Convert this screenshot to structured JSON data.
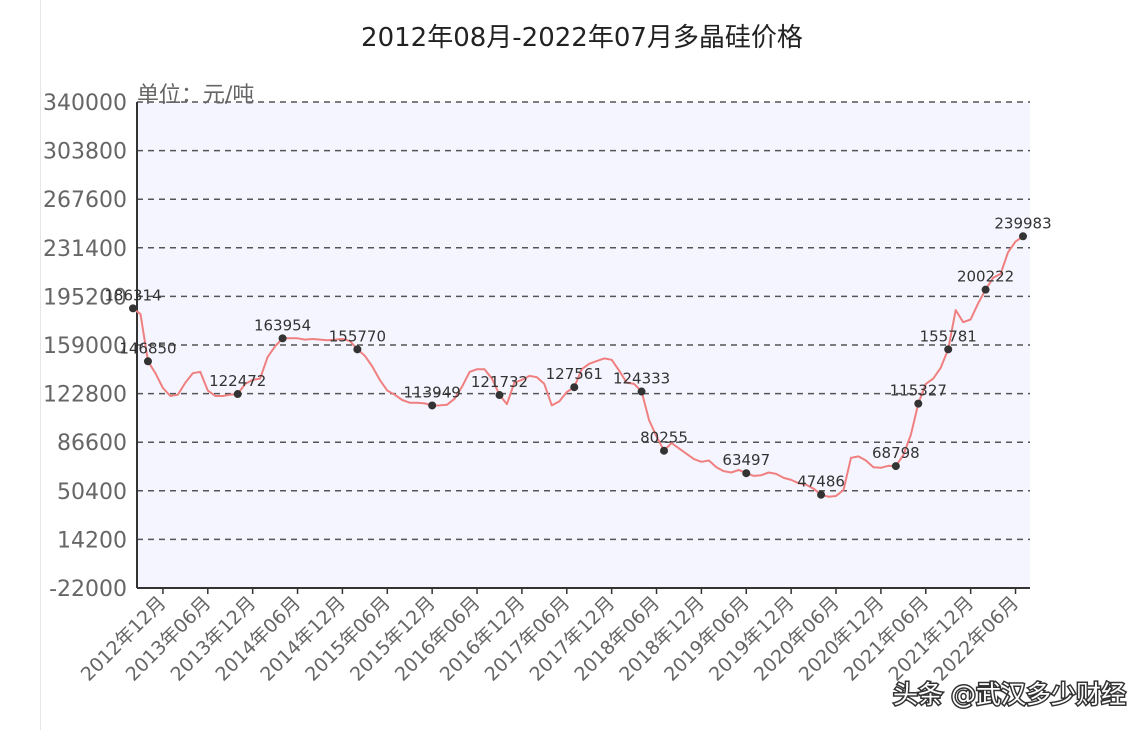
{
  "chart_data": {
    "type": "line",
    "title": "2012年08月-2022年07月多晶硅价格",
    "unit_label": "单位：元/吨",
    "y_ticks": [
      "340000",
      "303800",
      "267600",
      "231400",
      "195200",
      "159000",
      "122800",
      "86600",
      "50400",
      "14200",
      "-22000"
    ],
    "x_ticks": [
      "2012年12月",
      "2013年06月",
      "2013年12月",
      "2014年06月",
      "2014年12月",
      "2015年06月",
      "2015年12月",
      "2016年06月",
      "2016年12月",
      "2017年06月",
      "2017年12月",
      "2018年06月",
      "2018年12月",
      "2019年06月",
      "2019年12月",
      "2020年06月",
      "2020年12月",
      "2021年06月",
      "2021年12月",
      "2022年06月"
    ],
    "ylim": [
      -22000,
      340000
    ],
    "xlim": [
      "2012-08",
      "2022-07"
    ],
    "grid": "horizontal dashed",
    "line_color": "#f08080",
    "marker_color": "#333333",
    "plot_background": "#f5f5ff",
    "series": [
      {
        "values": [
          [
            "2012-08",
            186314
          ],
          [
            "2012-09",
            182000
          ],
          [
            "2012-10",
            146850
          ],
          [
            "2012-11",
            138000
          ],
          [
            "2012-12",
            127000
          ],
          [
            "2013-01",
            121000
          ],
          [
            "2013-02",
            122000
          ],
          [
            "2013-03",
            131000
          ],
          [
            "2013-04",
            138000
          ],
          [
            "2013-05",
            139000
          ],
          [
            "2013-06",
            125000
          ],
          [
            "2013-07",
            121000
          ],
          [
            "2013-08",
            121000
          ],
          [
            "2013-09",
            122000
          ],
          [
            "2013-10",
            122472
          ],
          [
            "2013-11",
            130000
          ],
          [
            "2013-12",
            133000
          ],
          [
            "2014-01",
            134000
          ],
          [
            "2014-02",
            150000
          ],
          [
            "2014-03",
            158000
          ],
          [
            "2014-04",
            163954
          ],
          [
            "2014-05",
            164000
          ],
          [
            "2014-06",
            164000
          ],
          [
            "2014-07",
            163000
          ],
          [
            "2014-08",
            163500
          ],
          [
            "2014-09",
            163000
          ],
          [
            "2014-10",
            162500
          ],
          [
            "2014-11",
            163000
          ],
          [
            "2014-12",
            163500
          ],
          [
            "2015-01",
            162000
          ],
          [
            "2015-02",
            155770
          ],
          [
            "2015-03",
            151000
          ],
          [
            "2015-04",
            143000
          ],
          [
            "2015-05",
            133000
          ],
          [
            "2015-06",
            125000
          ],
          [
            "2015-07",
            122000
          ],
          [
            "2015-08",
            118000
          ],
          [
            "2015-09",
            116000
          ],
          [
            "2015-10",
            116000
          ],
          [
            "2015-11",
            115500
          ],
          [
            "2015-12",
            113949
          ],
          [
            "2016-01",
            114000
          ],
          [
            "2016-02",
            114500
          ],
          [
            "2016-03",
            119000
          ],
          [
            "2016-04",
            128000
          ],
          [
            "2016-05",
            139000
          ],
          [
            "2016-06",
            141000
          ],
          [
            "2016-07",
            141000
          ],
          [
            "2016-08",
            134000
          ],
          [
            "2016-09",
            121732
          ],
          [
            "2016-10",
            115000
          ],
          [
            "2016-11",
            131000
          ],
          [
            "2016-12",
            133000
          ],
          [
            "2017-01",
            136000
          ],
          [
            "2017-02",
            135000
          ],
          [
            "2017-03",
            130000
          ],
          [
            "2017-04",
            114000
          ],
          [
            "2017-05",
            117000
          ],
          [
            "2017-06",
            124000
          ],
          [
            "2017-07",
            127561
          ],
          [
            "2017-08",
            141000
          ],
          [
            "2017-09",
            145000
          ],
          [
            "2017-10",
            147000
          ],
          [
            "2017-11",
            149000
          ],
          [
            "2017-12",
            148000
          ],
          [
            "2018-01",
            140000
          ],
          [
            "2018-02",
            131000
          ],
          [
            "2018-03",
            130000
          ],
          [
            "2018-04",
            124333
          ],
          [
            "2018-05",
            103000
          ],
          [
            "2018-06",
            91000
          ],
          [
            "2018-07",
            80255
          ],
          [
            "2018-08",
            86000
          ],
          [
            "2018-09",
            82000
          ],
          [
            "2018-10",
            78000
          ],
          [
            "2018-11",
            74000
          ],
          [
            "2018-12",
            72000
          ],
          [
            "2019-01",
            73000
          ],
          [
            "2019-02",
            68000
          ],
          [
            "2019-03",
            65000
          ],
          [
            "2019-04",
            64000
          ],
          [
            "2019-05",
            66000
          ],
          [
            "2019-06",
            63497
          ],
          [
            "2019-07",
            61500
          ],
          [
            "2019-08",
            62000
          ],
          [
            "2019-09",
            64000
          ],
          [
            "2019-10",
            63000
          ],
          [
            "2019-11",
            60000
          ],
          [
            "2019-12",
            58500
          ],
          [
            "2020-01",
            56000
          ],
          [
            "2020-02",
            55000
          ],
          [
            "2020-03",
            52000
          ],
          [
            "2020-04",
            47486
          ],
          [
            "2020-05",
            46000
          ],
          [
            "2020-06",
            46500
          ],
          [
            "2020-07",
            51000
          ],
          [
            "2020-08",
            75000
          ],
          [
            "2020-09",
            76000
          ],
          [
            "2020-10",
            73000
          ],
          [
            "2020-11",
            68000
          ],
          [
            "2020-12",
            67500
          ],
          [
            "2021-01",
            69000
          ],
          [
            "2021-02",
            68798
          ],
          [
            "2021-03",
            77000
          ],
          [
            "2021-04",
            92000
          ],
          [
            "2021-05",
            115327
          ],
          [
            "2021-06",
            130000
          ],
          [
            "2021-07",
            134000
          ],
          [
            "2021-08",
            142000
          ],
          [
            "2021-09",
            155781
          ],
          [
            "2021-10",
            185000
          ],
          [
            "2021-11",
            176000
          ],
          [
            "2021-12",
            178000
          ],
          [
            "2022-01",
            190000
          ],
          [
            "2022-02",
            200222
          ],
          [
            "2022-03",
            209000
          ],
          [
            "2022-04",
            212000
          ],
          [
            "2022-05",
            228000
          ],
          [
            "2022-06",
            236000
          ],
          [
            "2022-07",
            239983
          ]
        ]
      }
    ],
    "labeled_points": [
      [
        "2012-08",
        186314
      ],
      [
        "2012-10",
        146850
      ],
      [
        "2013-10",
        122472
      ],
      [
        "2014-04",
        163954
      ],
      [
        "2015-02",
        155770
      ],
      [
        "2015-12",
        113949
      ],
      [
        "2016-09",
        121732
      ],
      [
        "2017-07",
        127561
      ],
      [
        "2018-04",
        124333
      ],
      [
        "2018-07",
        80255
      ],
      [
        "2019-06",
        63497
      ],
      [
        "2020-04",
        47486
      ],
      [
        "2021-02",
        68798
      ],
      [
        "2021-05",
        115327
      ],
      [
        "2021-09",
        155781
      ],
      [
        "2022-02",
        200222
      ],
      [
        "2022-07",
        239983
      ]
    ]
  },
  "watermark": "头条 @武汉多少财经"
}
